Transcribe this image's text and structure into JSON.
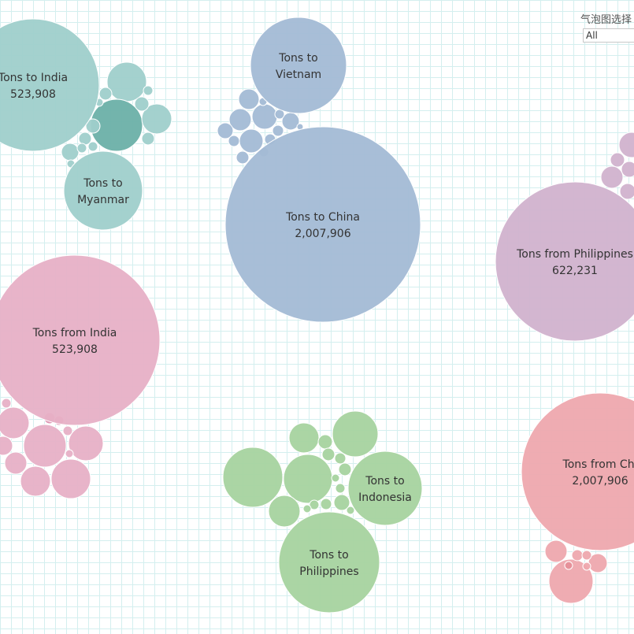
{
  "filter": {
    "title": "气泡图选择",
    "selected": "All"
  },
  "colors": {
    "to_india_cluster": "#9fcfcb",
    "to_india_dark": "#6bb0a8",
    "to_china_cluster": "#a3bbd5",
    "from_philippines_cluster": "#d1b2cd",
    "from_india_cluster": "#e7b0c6",
    "from_india_dark": "#db8fae",
    "to_philippines_cluster": "#a6d39f",
    "from_china_cluster": "#eea8ae",
    "from_china_dark": "#e58f99",
    "label_text": "#333333"
  },
  "chart_data": {
    "type": "bubble",
    "grid": true,
    "size_measure": "Tons",
    "labeled_bubbles": [
      {
        "line1": "Tons to India",
        "line2": "523,908",
        "value": 523908
      },
      {
        "line1": "Tons to",
        "line2": "Myanmar",
        "value": null
      },
      {
        "line1": "Tons to",
        "line2": "Vietnam",
        "value": null
      },
      {
        "line1": "Tons to China",
        "line2": "2,007,906",
        "value": 2007906
      },
      {
        "line1": "Tons from Philippines",
        "line2": "622,231",
        "value": 622231
      },
      {
        "line1": "Tons from India",
        "line2": "523,908",
        "value": 523908
      },
      {
        "line1": "Tons to",
        "line2": "Indonesia",
        "value": null
      },
      {
        "line1": "Tons to",
        "line2": "Philippines",
        "value": null
      },
      {
        "line1": "Tons from Chi",
        "line2": "2,007,906",
        "value": 2007906
      }
    ]
  }
}
